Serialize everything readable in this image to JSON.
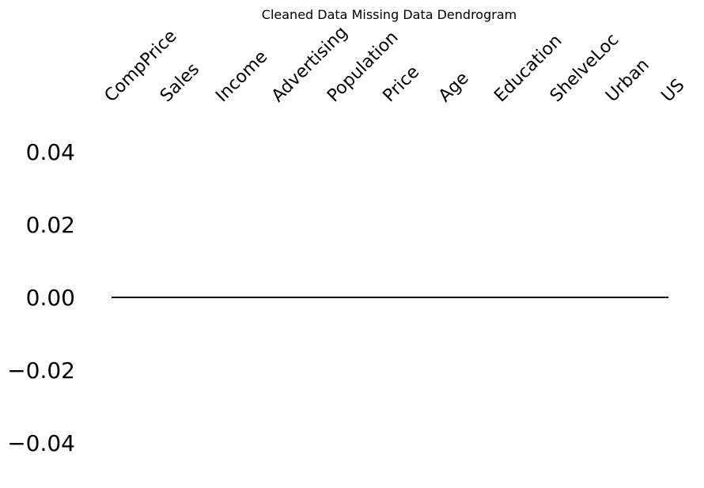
{
  "chart_data": {
    "type": "dendrogram",
    "title": "Cleaned Data Missing Data Dendrogram",
    "leaves": [
      "CompPrice",
      "Sales",
      "Income",
      "Advertising",
      "Population",
      "Price",
      "Age",
      "Education",
      "ShelveLoc",
      "Urban",
      "US"
    ],
    "y_ticks": [
      0.04,
      0.02,
      0.0,
      -0.02,
      -0.04
    ],
    "y_tick_labels": [
      "0.04",
      "0.02",
      "0.00",
      "−0.02",
      "−0.04"
    ],
    "ylim": [
      -0.05,
      0.05
    ],
    "merge_heights": [
      0,
      0,
      0,
      0,
      0,
      0,
      0,
      0,
      0,
      0
    ],
    "line_color": "#000000",
    "grid": false,
    "axis_spines": false
  }
}
